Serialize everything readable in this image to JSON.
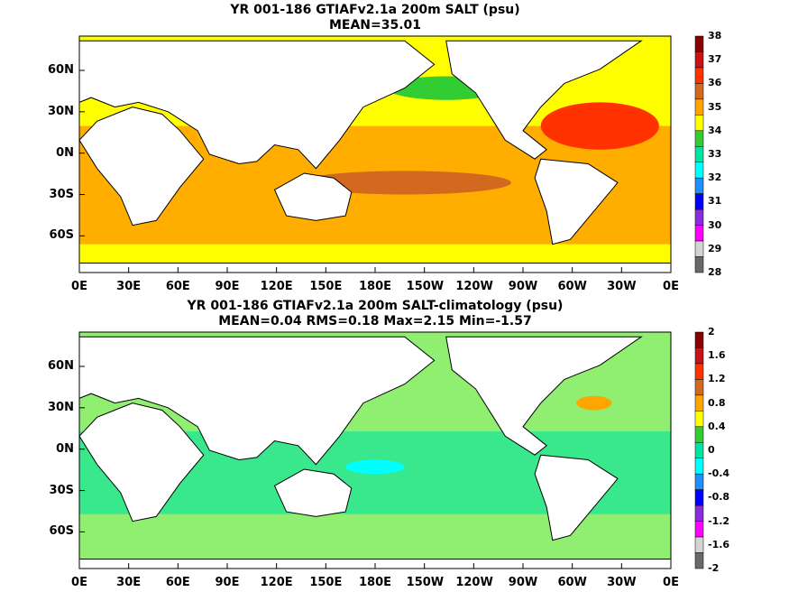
{
  "panel1": {
    "title": "YR 001-186 GTIAFv2.1a 200m SALT (psu)",
    "subtitle": "MEAN=35.01",
    "colorbar_labels": [
      "38",
      "37",
      "36",
      "35",
      "34",
      "33",
      "32",
      "31",
      "30",
      "29",
      "28"
    ],
    "colors": [
      "#8b0000",
      "#c81414",
      "#ff3200",
      "#d2691e",
      "#ffa500",
      "#ffff00",
      "#32cd32",
      "#00e5a0",
      "#00ffff",
      "#1e90ff",
      "#0000ff",
      "#8a2be2",
      "#ff00ff",
      "#d3d3d3",
      "#696969"
    ]
  },
  "panel2": {
    "title": "YR 001-186 GTIAFv2.1a 200m SALT-climatology (psu)",
    "subtitle": "MEAN=0.04   RMS=0.18   Max=2.15   Min=-1.57",
    "colorbar_labels": [
      "2",
      "1.6",
      "1.2",
      "0.8",
      "0.4",
      "0",
      "-0.4",
      "-0.8",
      "-1.2",
      "-1.6",
      "-2"
    ]
  },
  "lat_labels": [
    "60N",
    "30N",
    "0N",
    "30S",
    "60S"
  ],
  "lon_labels": [
    "0E",
    "30E",
    "60E",
    "90E",
    "120E",
    "150E",
    "180E",
    "150W",
    "120W",
    "90W",
    "60W",
    "30W",
    "0E"
  ]
}
